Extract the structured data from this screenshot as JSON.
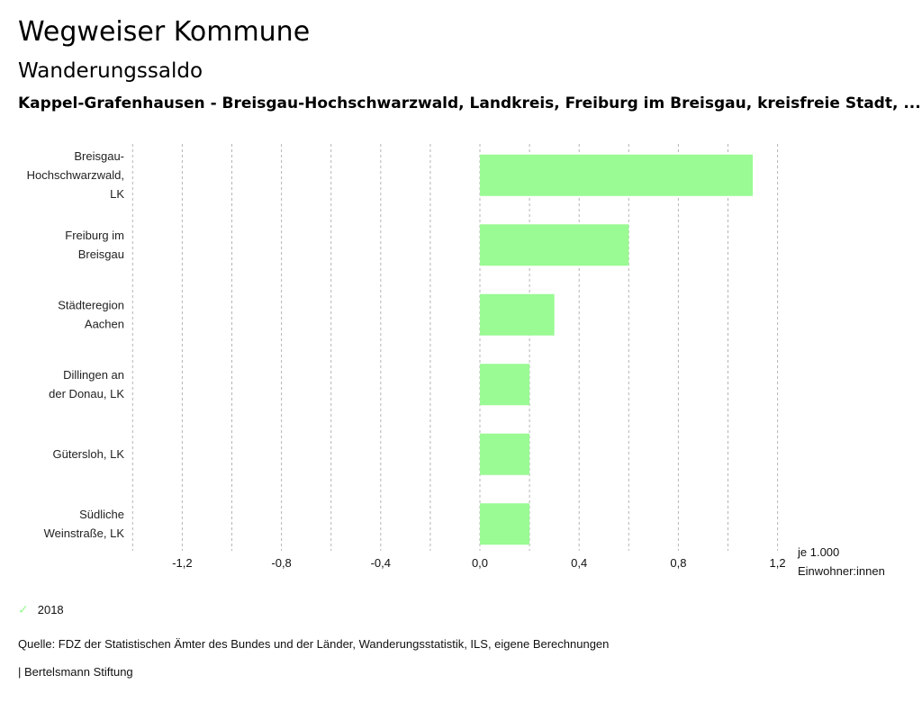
{
  "header": {
    "title": "Wegweiser Kommune",
    "subtitle": "Wanderungssaldo",
    "regions": "Kappel-Grafenhausen - Breisgau-Hochschwarzwald, Landkreis, Freiburg im Breisgau, kreisfreie Stadt, ..."
  },
  "chart_data": {
    "type": "bar",
    "orientation": "horizontal",
    "title": "Wanderungssaldo",
    "categories": [
      [
        "Breisgau-",
        "Hochschwarzwald,",
        "LK"
      ],
      [
        "Freiburg im",
        "Breisgau"
      ],
      [
        "Städteregion",
        "Aachen"
      ],
      [
        "Dillingen an",
        "der Donau, LK"
      ],
      [
        "Gütersloh, LK"
      ],
      [
        "Südliche",
        "Weinstraße, LK"
      ]
    ],
    "series": [
      {
        "name": "2018",
        "color": "#9afa93",
        "values": [
          1.1,
          0.6,
          0.3,
          0.2,
          0.2,
          0.2
        ]
      }
    ],
    "xlim": [
      -1.4,
      1.2
    ],
    "xticks": [
      -1.2,
      -0.8,
      -0.4,
      0.0,
      0.4,
      0.8,
      1.2
    ],
    "xtick_labels": [
      "-1,2",
      "-0,8",
      "-0,4",
      "0,0",
      "0,4",
      "0,8",
      "1,2"
    ],
    "gridlines": [
      -1.4,
      -1.2,
      -1.0,
      -0.8,
      -0.6,
      -0.4,
      -0.2,
      0.0,
      0.2,
      0.4,
      0.6,
      0.8,
      1.0,
      1.2
    ],
    "grid": true,
    "xlabel": [
      "je 1.000",
      "Einwohner:innen"
    ],
    "ylabel": "",
    "legend_position": "bottom-left"
  },
  "legend": {
    "icon": "check-icon",
    "label": "2018"
  },
  "footer": {
    "source": "Quelle: FDZ der Statistischen Ämter des Bundes und der Länder, Wanderungsstatistik, ILS, eigene Berechnungen",
    "brand": "| Bertelsmann Stiftung"
  }
}
